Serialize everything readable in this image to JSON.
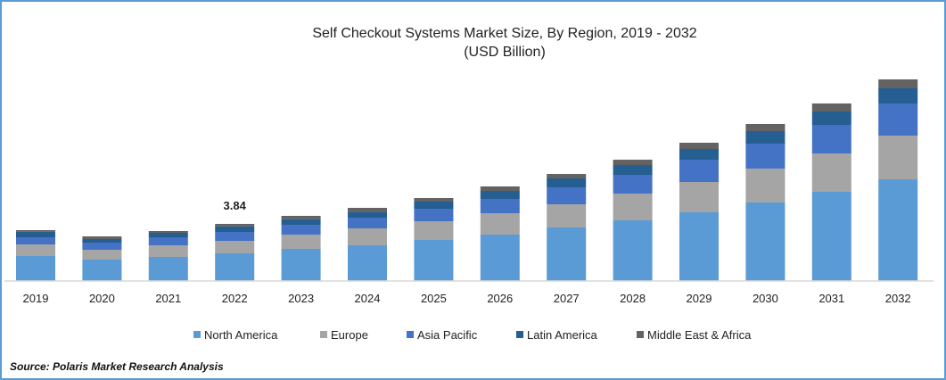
{
  "chart_data": {
    "type": "bar",
    "stacked": true,
    "title": "Self Checkout Systems Market Size, By Region, 2019 - 2032",
    "subtitle": "(USD Billion)",
    "xlabel": "",
    "ylabel": "",
    "ylim": [
      0,
      15
    ],
    "grid": false,
    "legend_position": "bottom",
    "categories": [
      "2019",
      "2020",
      "2021",
      "2022",
      "2023",
      "2024",
      "2025",
      "2026",
      "2027",
      "2028",
      "2029",
      "2030",
      "2031",
      "2032"
    ],
    "series": [
      {
        "name": "North America",
        "color": "#5B9BD5",
        "values": [
          1.68,
          1.44,
          1.62,
          1.86,
          2.16,
          2.4,
          2.76,
          3.12,
          3.6,
          4.08,
          4.62,
          5.28,
          6.0,
          6.84
        ]
      },
      {
        "name": "Europe",
        "color": "#A5A5A5",
        "values": [
          0.78,
          0.66,
          0.78,
          0.84,
          0.96,
          1.14,
          1.26,
          1.44,
          1.56,
          1.8,
          2.04,
          2.28,
          2.58,
          2.94
        ]
      },
      {
        "name": "Asia Pacific",
        "color": "#4472C4",
        "values": [
          0.48,
          0.48,
          0.54,
          0.6,
          0.66,
          0.72,
          0.84,
          0.96,
          1.14,
          1.26,
          1.5,
          1.68,
          1.92,
          2.16
        ]
      },
      {
        "name": "Latin America",
        "color": "#255E91",
        "values": [
          0.38,
          0.24,
          0.3,
          0.38,
          0.38,
          0.4,
          0.48,
          0.54,
          0.6,
          0.66,
          0.72,
          0.84,
          0.9,
          1.02
        ]
      },
      {
        "name": "Middle East & Africa",
        "color": "#636363",
        "values": [
          0.1,
          0.18,
          0.12,
          0.16,
          0.22,
          0.26,
          0.24,
          0.3,
          0.3,
          0.36,
          0.42,
          0.48,
          0.54,
          0.6
        ]
      }
    ],
    "annotations": [
      {
        "category": "2022",
        "text": "3.84"
      }
    ]
  },
  "source": "Source: Polaris  Market Research Analysis"
}
